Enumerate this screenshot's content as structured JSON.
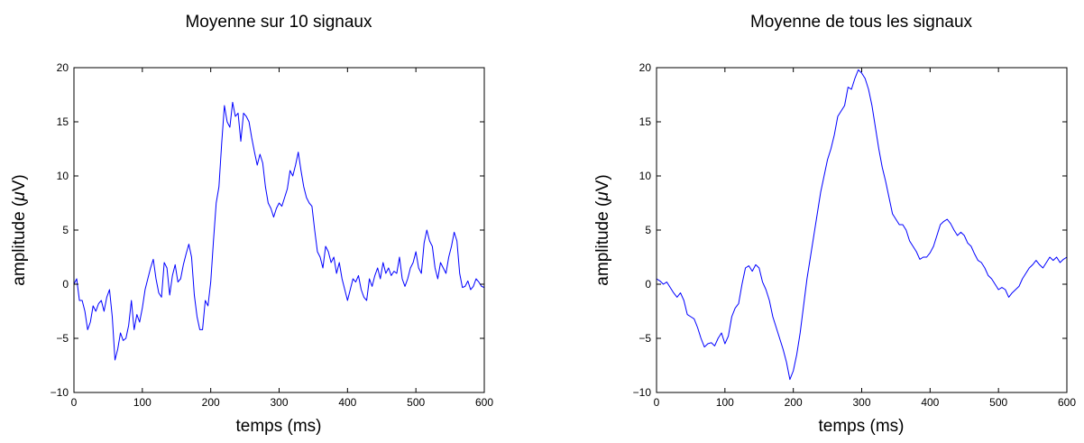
{
  "chart_data": [
    {
      "type": "line",
      "title": "Moyenne sur 10 signaux",
      "xlabel": "temps (ms)",
      "ylabel_prefix": "amplitude (",
      "ylabel_symbol": "μ",
      "ylabel_suffix": "V)",
      "xlim": [
        0,
        600
      ],
      "ylim": [
        -10,
        20
      ],
      "xticks": [
        0,
        100,
        200,
        300,
        400,
        500,
        600
      ],
      "yticks": [
        -10,
        -5,
        0,
        5,
        10,
        15,
        20
      ],
      "xtick_labels": [
        "0",
        "100",
        "200",
        "300",
        "400",
        "500",
        "600"
      ],
      "ytick_labels": [
        "−10",
        "−5",
        "0",
        "5",
        "10",
        "15",
        "20"
      ],
      "grid": false,
      "series": [
        {
          "color": "#0000ff",
          "x": [
            0,
            4,
            8,
            12,
            16,
            20,
            24,
            28,
            32,
            36,
            40,
            44,
            48,
            52,
            56,
            60,
            64,
            68,
            72,
            76,
            80,
            84,
            88,
            92,
            96,
            100,
            104,
            108,
            112,
            116,
            120,
            124,
            128,
            132,
            136,
            140,
            144,
            148,
            152,
            156,
            160,
            164,
            168,
            172,
            176,
            180,
            184,
            188,
            192,
            196,
            200,
            204,
            208,
            212,
            216,
            220,
            224,
            228,
            232,
            236,
            240,
            244,
            248,
            252,
            256,
            260,
            264,
            268,
            272,
            276,
            280,
            284,
            288,
            292,
            296,
            300,
            304,
            308,
            312,
            316,
            320,
            324,
            328,
            332,
            336,
            340,
            344,
            348,
            352,
            356,
            360,
            364,
            368,
            372,
            376,
            380,
            384,
            388,
            392,
            396,
            400,
            404,
            408,
            412,
            416,
            420,
            424,
            428,
            432,
            436,
            440,
            444,
            448,
            452,
            456,
            460,
            464,
            468,
            472,
            476,
            480,
            484,
            488,
            492,
            496,
            500,
            504,
            508,
            512,
            516,
            520,
            524,
            528,
            532,
            536,
            540,
            544,
            548,
            552,
            556,
            560,
            564,
            568,
            572,
            576,
            580,
            584,
            588,
            592,
            596,
            600
          ],
          "y": [
            0,
            0.5,
            -1.5,
            -1.5,
            -2.5,
            -4.2,
            -3.5,
            -2.0,
            -2.5,
            -1.8,
            -1.5,
            -2.5,
            -1.2,
            -0.5,
            -3.0,
            -7.0,
            -6.0,
            -4.5,
            -5.2,
            -5.0,
            -3.8,
            -1.5,
            -4.2,
            -2.8,
            -3.5,
            -2.2,
            -0.5,
            0.5,
            1.5,
            2.3,
            0.5,
            -0.8,
            -1.2,
            2.0,
            1.5,
            -1.0,
            0.8,
            1.8,
            0.2,
            0.5,
            1.8,
            2.8,
            3.7,
            2.5,
            -1.0,
            -3.0,
            -4.2,
            -4.2,
            -1.5,
            -2.0,
            0.2,
            4.0,
            7.5,
            9.0,
            13.0,
            16.5,
            15.0,
            14.5,
            16.8,
            15.5,
            15.8,
            13.2,
            15.8,
            15.5,
            15.0,
            13.5,
            12.2,
            11.0,
            12.0,
            11.2,
            9.0,
            7.5,
            7.0,
            6.2,
            7.0,
            7.5,
            7.2,
            8.0,
            8.8,
            10.5,
            10.0,
            11.0,
            12.2,
            10.5,
            9.0,
            8.0,
            7.5,
            7.2,
            5.0,
            3.0,
            2.5,
            1.5,
            3.5,
            3.0,
            2.0,
            2.5,
            1.0,
            2.0,
            0.5,
            -0.5,
            -1.5,
            -0.5,
            0.5,
            0.2,
            0.8,
            -0.5,
            -1.2,
            -1.5,
            0.5,
            -0.2,
            0.8,
            1.5,
            0.5,
            2.0,
            1.0,
            1.5,
            0.8,
            1.2,
            1.0,
            2.5,
            0.5,
            -0.2,
            0.5,
            1.5,
            2.0,
            3.0,
            1.5,
            1.0,
            3.8,
            5.0,
            4.0,
            3.5,
            1.5,
            0.5,
            2.0,
            1.5,
            1.0,
            2.5,
            3.5,
            4.8,
            4.0,
            1.0,
            -0.3,
            -0.2,
            0.3,
            -0.5,
            -0.2,
            0.5,
            0.2,
            -0.2,
            -0.3
          ]
        }
      ]
    },
    {
      "type": "line",
      "title": "Moyenne de tous les signaux",
      "xlabel": "temps (ms)",
      "ylabel_prefix": "amplitude (",
      "ylabel_symbol": "μ",
      "ylabel_suffix": "V)",
      "xlim": [
        0,
        600
      ],
      "ylim": [
        -10,
        20
      ],
      "xticks": [
        0,
        100,
        200,
        300,
        400,
        500,
        600
      ],
      "yticks": [
        -10,
        -5,
        0,
        5,
        10,
        15,
        20
      ],
      "xtick_labels": [
        "0",
        "100",
        "200",
        "300",
        "400",
        "500",
        "600"
      ],
      "ytick_labels": [
        "−10",
        "−5",
        "0",
        "5",
        "10",
        "15",
        "20"
      ],
      "grid": false,
      "series": [
        {
          "color": "#0000ff",
          "x": [
            0,
            5,
            10,
            15,
            20,
            25,
            30,
            35,
            40,
            45,
            50,
            55,
            60,
            65,
            70,
            75,
            80,
            85,
            90,
            95,
            100,
            105,
            110,
            115,
            120,
            125,
            130,
            135,
            140,
            145,
            150,
            155,
            160,
            165,
            170,
            175,
            180,
            185,
            190,
            195,
            200,
            205,
            210,
            215,
            220,
            225,
            230,
            235,
            240,
            245,
            250,
            255,
            260,
            265,
            270,
            275,
            280,
            285,
            290,
            295,
            300,
            305,
            310,
            315,
            320,
            325,
            330,
            335,
            340,
            345,
            350,
            355,
            360,
            365,
            370,
            375,
            380,
            385,
            390,
            395,
            400,
            405,
            410,
            415,
            420,
            425,
            430,
            435,
            440,
            445,
            450,
            455,
            460,
            465,
            470,
            475,
            480,
            485,
            490,
            495,
            500,
            505,
            510,
            515,
            520,
            525,
            530,
            535,
            540,
            545,
            550,
            555,
            560,
            565,
            570,
            575,
            580,
            585,
            590,
            595,
            600
          ],
          "y": [
            0.5,
            0.3,
            0.0,
            0.2,
            -0.3,
            -0.8,
            -1.2,
            -0.8,
            -1.5,
            -2.8,
            -3.0,
            -3.2,
            -4.0,
            -5.0,
            -5.8,
            -5.5,
            -5.4,
            -5.7,
            -5.0,
            -4.5,
            -5.5,
            -4.8,
            -3.0,
            -2.2,
            -1.8,
            0.0,
            1.5,
            1.7,
            1.2,
            1.8,
            1.5,
            0.2,
            -0.5,
            -1.5,
            -3.0,
            -4.0,
            -5.0,
            -6.0,
            -7.2,
            -8.8,
            -8.0,
            -6.5,
            -4.5,
            -2.0,
            0.5,
            2.5,
            4.5,
            6.5,
            8.5,
            10.0,
            11.5,
            12.5,
            13.8,
            15.5,
            16.0,
            16.5,
            18.2,
            18.0,
            19.0,
            19.8,
            19.5,
            19.0,
            18.0,
            16.5,
            14.5,
            12.5,
            10.8,
            9.5,
            8.0,
            6.5,
            6.0,
            5.5,
            5.5,
            5.0,
            4.0,
            3.5,
            3.0,
            2.3,
            2.5,
            2.5,
            2.9,
            3.5,
            4.5,
            5.5,
            5.8,
            6.0,
            5.6,
            5.0,
            4.5,
            4.8,
            4.5,
            3.8,
            3.5,
            2.8,
            2.2,
            2.0,
            1.5,
            0.8,
            0.5,
            0.0,
            -0.5,
            -0.3,
            -0.5,
            -1.2,
            -0.8,
            -0.5,
            -0.2,
            0.5,
            1.0,
            1.5,
            1.8,
            2.2,
            1.8,
            1.5,
            2.0,
            2.5,
            2.2,
            2.5,
            2.0,
            2.3,
            2.5
          ]
        }
      ]
    }
  ]
}
